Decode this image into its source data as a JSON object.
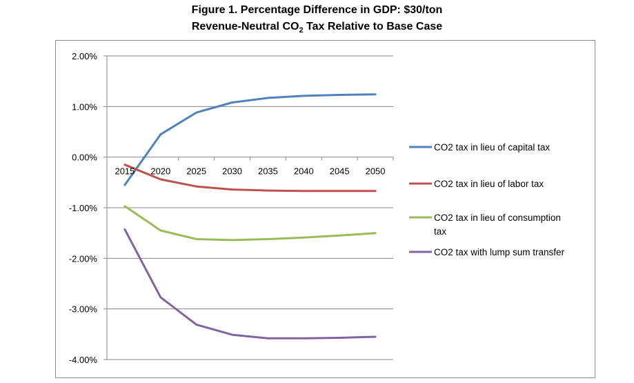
{
  "title": {
    "line1": "Figure 1. Percentage Difference in GDP: $30/ton",
    "line2_prefix": "Revenue-Neutral CO",
    "line2_sub": "2",
    "line2_suffix": " Tax Relative to Base Case"
  },
  "chart_data": {
    "type": "line",
    "x": [
      "2015",
      "2020",
      "2025",
      "2030",
      "2035",
      "2040",
      "2045",
      "2050"
    ],
    "y_ticks": [
      "2.00%",
      "1.00%",
      "0.00%",
      "-1.00%",
      "-2.00%",
      "-3.00%",
      "-4.00%"
    ],
    "ylim": [
      -4,
      2
    ],
    "grid": "horizontal",
    "legend_position": "right",
    "series": [
      {
        "name": "CO2 tax in lieu of capital tax",
        "color": "#4f81bd",
        "values": [
          -0.55,
          0.45,
          0.88,
          1.08,
          1.17,
          1.21,
          1.23,
          1.24
        ]
      },
      {
        "name": "CO2 tax in lieu of labor tax",
        "color": "#c0504d",
        "values": [
          -0.15,
          -0.44,
          -0.58,
          -0.64,
          -0.66,
          -0.67,
          -0.67,
          -0.67
        ]
      },
      {
        "name": "CO2 tax in lieu of consumption tax",
        "legend_lines": [
          "CO2 tax in lieu of consumption",
          "tax"
        ],
        "color": "#9bbb59",
        "values": [
          -0.97,
          -1.45,
          -1.62,
          -1.64,
          -1.62,
          -1.59,
          -1.55,
          -1.5
        ]
      },
      {
        "name": "CO2 tax with lump sum transfer",
        "color": "#8064a2",
        "values": [
          -1.43,
          -2.77,
          -3.31,
          -3.51,
          -3.58,
          -3.58,
          -3.57,
          -3.55
        ]
      }
    ]
  }
}
